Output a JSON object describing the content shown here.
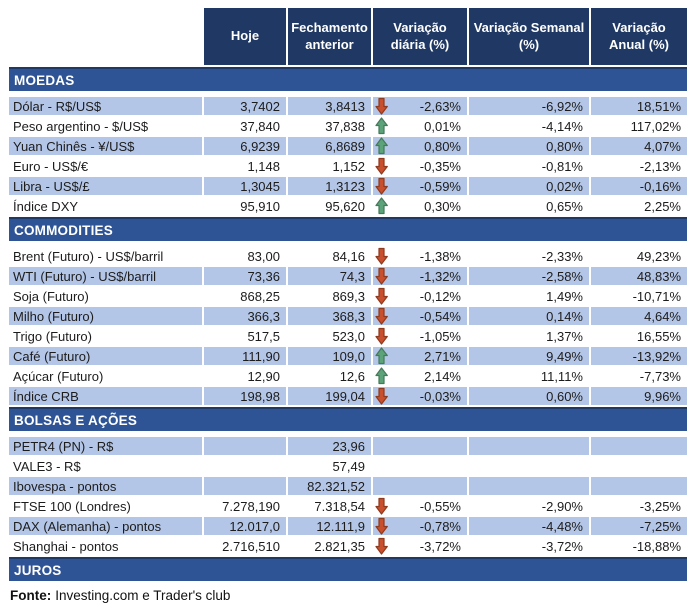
{
  "header": {
    "cols": [
      "Hoje",
      "Fechamento anterior",
      "Variação diária (%)",
      "Variação Semanal (%)",
      "Variação Anual (%)"
    ]
  },
  "sections": [
    {
      "id": "moedas",
      "title": "MOEDAS",
      "first_row_shaded": true,
      "rows": [
        {
          "label": "Dólar - R$/US$",
          "hoje": "3,7402",
          "fechamento": "3,8413",
          "arrow": "down",
          "var_diaria": "-2,63%",
          "var_semanal": "-6,92%",
          "var_anual": "18,51%"
        },
        {
          "label": "Peso argentino - $/US$",
          "hoje": "37,840",
          "fechamento": "37,838",
          "arrow": "up",
          "var_diaria": "0,01%",
          "var_semanal": "-4,14%",
          "var_anual": "117,02%"
        },
        {
          "label": "Yuan Chinês - ¥/US$",
          "hoje": "6,9239",
          "fechamento": "6,8689",
          "arrow": "up",
          "var_diaria": "0,80%",
          "var_semanal": "0,80%",
          "var_anual": "4,07%"
        },
        {
          "label": "Euro - US$/€",
          "hoje": "1,148",
          "fechamento": "1,152",
          "arrow": "down",
          "var_diaria": "-0,35%",
          "var_semanal": "-0,81%",
          "var_anual": "-2,13%"
        },
        {
          "label": "Libra - US$/£",
          "hoje": "1,3045",
          "fechamento": "1,3123",
          "arrow": "down",
          "var_diaria": "-0,59%",
          "var_semanal": "0,02%",
          "var_anual": "-0,16%"
        },
        {
          "label": "Índice DXY",
          "hoje": "95,910",
          "fechamento": "95,620",
          "arrow": "up",
          "var_diaria": "0,30%",
          "var_semanal": "0,65%",
          "var_anual": "2,25%"
        }
      ]
    },
    {
      "id": "commodities",
      "title": "COMMODITIES",
      "first_row_shaded": false,
      "rows": [
        {
          "label": "Brent (Futuro) - US$/barril",
          "hoje": "83,00",
          "fechamento": "84,16",
          "arrow": "down",
          "var_diaria": "-1,38%",
          "var_semanal": "-2,33%",
          "var_anual": "49,23%"
        },
        {
          "label": "WTI (Futuro) - US$/barril",
          "hoje": "73,36",
          "fechamento": "74,3",
          "arrow": "down",
          "var_diaria": "-1,32%",
          "var_semanal": "-2,58%",
          "var_anual": "48,83%"
        },
        {
          "label": "Soja (Futuro)",
          "hoje": "868,25",
          "fechamento": "869,3",
          "arrow": "down",
          "var_diaria": "-0,12%",
          "var_semanal": "1,49%",
          "var_anual": "-10,71%"
        },
        {
          "label": "Milho (Futuro)",
          "hoje": "366,3",
          "fechamento": "368,3",
          "arrow": "down",
          "var_diaria": "-0,54%",
          "var_semanal": "0,14%",
          "var_anual": "4,64%"
        },
        {
          "label": "Trigo (Futuro)",
          "hoje": "517,5",
          "fechamento": "523,0",
          "arrow": "down",
          "var_diaria": "-1,05%",
          "var_semanal": "1,37%",
          "var_anual": "16,55%"
        },
        {
          "label": "Café (Futuro)",
          "hoje": "111,90",
          "fechamento": "109,0",
          "arrow": "up",
          "var_diaria": "2,71%",
          "var_semanal": "9,49%",
          "var_anual": "-13,92%"
        },
        {
          "label": "Açúcar (Futuro)",
          "hoje": "12,90",
          "fechamento": "12,6",
          "arrow": "up",
          "var_diaria": "2,14%",
          "var_semanal": "11,11%",
          "var_anual": "-7,73%"
        },
        {
          "label": "Índice CRB",
          "hoje": "198,98",
          "fechamento": "199,04",
          "arrow": "down",
          "var_diaria": "-0,03%",
          "var_semanal": "0,60%",
          "var_anual": "9,96%"
        }
      ]
    },
    {
      "id": "bolsas-e-acoes",
      "title": "BOLSAS E AÇÕES",
      "first_row_shaded": true,
      "rows": [
        {
          "label": "PETR4 (PN) - R$",
          "hoje": "",
          "fechamento": "23,96",
          "arrow": "",
          "var_diaria": "",
          "var_semanal": "",
          "var_anual": ""
        },
        {
          "label": "VALE3 - R$",
          "hoje": "",
          "fechamento": "57,49",
          "arrow": "",
          "var_diaria": "",
          "var_semanal": "",
          "var_anual": ""
        },
        {
          "label": "Ibovespa - pontos",
          "hoje": "",
          "fechamento": "82.321,52",
          "arrow": "",
          "var_diaria": "",
          "var_semanal": "",
          "var_anual": ""
        },
        {
          "label": "FTSE 100 (Londres)",
          "hoje": "7.278,190",
          "fechamento": "7.318,54",
          "arrow": "down",
          "var_diaria": "-0,55%",
          "var_semanal": "-2,90%",
          "var_anual": "-3,25%"
        },
        {
          "label": "DAX (Alemanha) - pontos",
          "hoje": "12.017,0",
          "fechamento": "12.111,9",
          "arrow": "down",
          "var_diaria": "-0,78%",
          "var_semanal": "-4,48%",
          "var_anual": "-7,25%"
        },
        {
          "label": "Shanghai - pontos",
          "hoje": "2.716,510",
          "fechamento": "2.821,35",
          "arrow": "down",
          "var_diaria": "-3,72%",
          "var_semanal": "-3,72%",
          "var_anual": "-18,88%"
        }
      ]
    },
    {
      "id": "juros",
      "title": "JUROS",
      "first_row_shaded": true,
      "rows": []
    }
  ],
  "footer": {
    "source_label": "Fonte:",
    "source_text": "Investing.com e Trader's club"
  },
  "colors": {
    "header_bg": "#1F3864",
    "section_bg": "#2F5496",
    "row_shade": "#B4C6E7",
    "arrow_up_fill": "#5CA379",
    "arrow_up_stroke": "#44795A",
    "arrow_down_fill": "#C8502E",
    "arrow_down_stroke": "#8E3A1F"
  }
}
